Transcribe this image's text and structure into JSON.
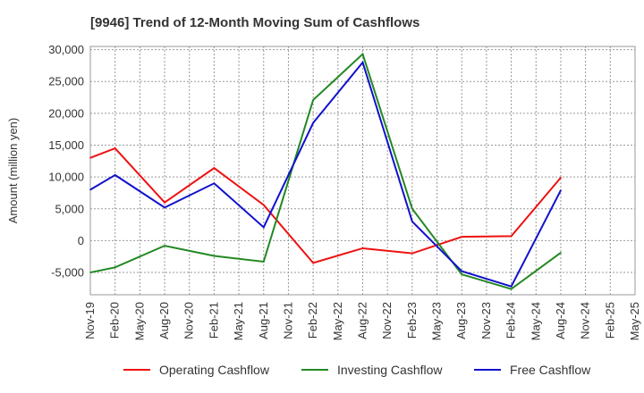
{
  "chart_data": {
    "type": "line",
    "title": "[9946]  Trend of 12-Month Moving Sum of Cashflows",
    "xlabel": "",
    "ylabel": "Amount (million yen)",
    "ylim": [
      -8500,
      30500
    ],
    "yticks": [
      -5000,
      0,
      5000,
      10000,
      15000,
      20000,
      25000,
      30000
    ],
    "ytick_labels": [
      "-5,000",
      "0",
      "5,000",
      "10,000",
      "15,000",
      "20,000",
      "25,000",
      "30,000"
    ],
    "x": [
      "Nov-19",
      "Feb-20",
      "May-20",
      "Aug-20",
      "Nov-20",
      "Feb-21",
      "May-21",
      "Aug-21",
      "Nov-21",
      "Feb-22",
      "May-22",
      "Aug-22",
      "Nov-22",
      "Feb-23",
      "May-23",
      "Aug-23",
      "Nov-23",
      "Feb-24",
      "May-24",
      "Aug-24",
      "Nov-24",
      "Feb-25",
      "May-25"
    ],
    "grid": true,
    "legend_position": "bottom",
    "series": [
      {
        "name": "Operating Cashflow",
        "color": "#ee1111",
        "values": [
          13000,
          14500,
          null,
          6000,
          null,
          11400,
          null,
          5600,
          null,
          -3500,
          null,
          -1200,
          null,
          -2000,
          null,
          600,
          null,
          700,
          null,
          9900,
          null,
          null,
          null
        ]
      },
      {
        "name": "Investing Cashflow",
        "color": "#228822",
        "values": [
          -5000,
          -4200,
          null,
          -800,
          null,
          -2400,
          null,
          -3300,
          null,
          22100,
          null,
          29300,
          null,
          5000,
          null,
          -5300,
          null,
          -7600,
          null,
          -1900,
          null,
          null,
          null
        ]
      },
      {
        "name": "Free Cashflow",
        "color": "#1111cc",
        "values": [
          8000,
          10300,
          null,
          5200,
          null,
          9000,
          null,
          2100,
          null,
          18500,
          null,
          28000,
          null,
          3000,
          null,
          -4800,
          null,
          -7200,
          null,
          7900,
          null,
          null,
          null
        ]
      }
    ]
  }
}
